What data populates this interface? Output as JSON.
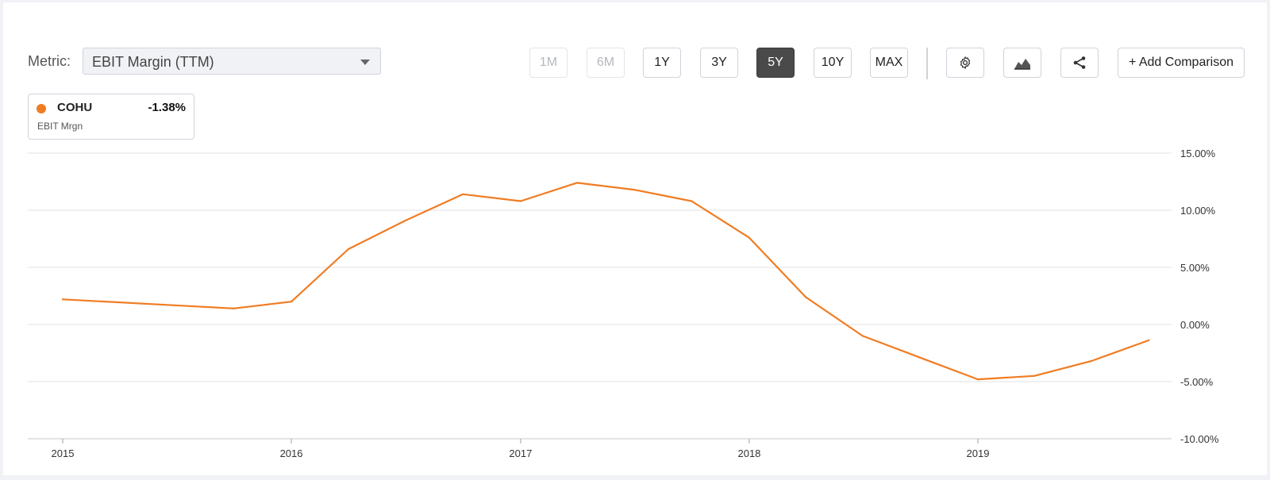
{
  "metric": {
    "label": "Metric:",
    "selected": "EBIT Margin (TTM)"
  },
  "range_buttons": [
    {
      "label": "1M",
      "state": "disabled"
    },
    {
      "label": "6M",
      "state": "disabled"
    },
    {
      "label": "1Y",
      "state": "normal"
    },
    {
      "label": "3Y",
      "state": "normal"
    },
    {
      "label": "5Y",
      "state": "active"
    },
    {
      "label": "10Y",
      "state": "normal"
    },
    {
      "label": "MAX",
      "state": "normal"
    }
  ],
  "toolbar": {
    "settings_icon": "gear-icon",
    "chart_type_icon": "area-chart-icon",
    "share_icon": "share-icon",
    "add_comparison_label": "+ Add Comparison"
  },
  "legend": {
    "ticker": "COHU",
    "value": "-1.38%",
    "metric_abbrev": "EBIT Mrgn",
    "color": "#f07c22"
  },
  "chart_data": {
    "type": "line",
    "title": "",
    "xlabel": "",
    "ylabel": "",
    "x_tick_labels": [
      "2015",
      "2016",
      "2017",
      "2018",
      "2019"
    ],
    "y_tick_labels": [
      "15.00%",
      "10.00%",
      "5.00%",
      "0.00%",
      "-5.00%",
      "-10.00%"
    ],
    "ylim": [
      -10,
      15
    ],
    "grid": true,
    "y_axis_side": "right",
    "series": [
      {
        "name": "COHU",
        "color": "#f07c22",
        "points": [
          {
            "x": "2015-01-01",
            "y": 2.2
          },
          {
            "x": "2015-10-01",
            "y": 1.4
          },
          {
            "x": "2016-01-01",
            "y": 2.0
          },
          {
            "x": "2016-04-01",
            "y": 6.6
          },
          {
            "x": "2016-07-01",
            "y": 9.1
          },
          {
            "x": "2016-10-01",
            "y": 11.4
          },
          {
            "x": "2017-01-01",
            "y": 10.8
          },
          {
            "x": "2017-04-01",
            "y": 12.4
          },
          {
            "x": "2017-07-01",
            "y": 11.8
          },
          {
            "x": "2017-10-01",
            "y": 10.8
          },
          {
            "x": "2018-01-01",
            "y": 7.6
          },
          {
            "x": "2018-04-01",
            "y": 2.4
          },
          {
            "x": "2018-07-01",
            "y": -1.0
          },
          {
            "x": "2018-10-01",
            "y": -2.9
          },
          {
            "x": "2019-01-01",
            "y": -4.8
          },
          {
            "x": "2019-04-01",
            "y": -4.5
          },
          {
            "x": "2019-07-01",
            "y": -3.2
          },
          {
            "x": "2019-10-01",
            "y": -1.38
          }
        ]
      }
    ]
  }
}
